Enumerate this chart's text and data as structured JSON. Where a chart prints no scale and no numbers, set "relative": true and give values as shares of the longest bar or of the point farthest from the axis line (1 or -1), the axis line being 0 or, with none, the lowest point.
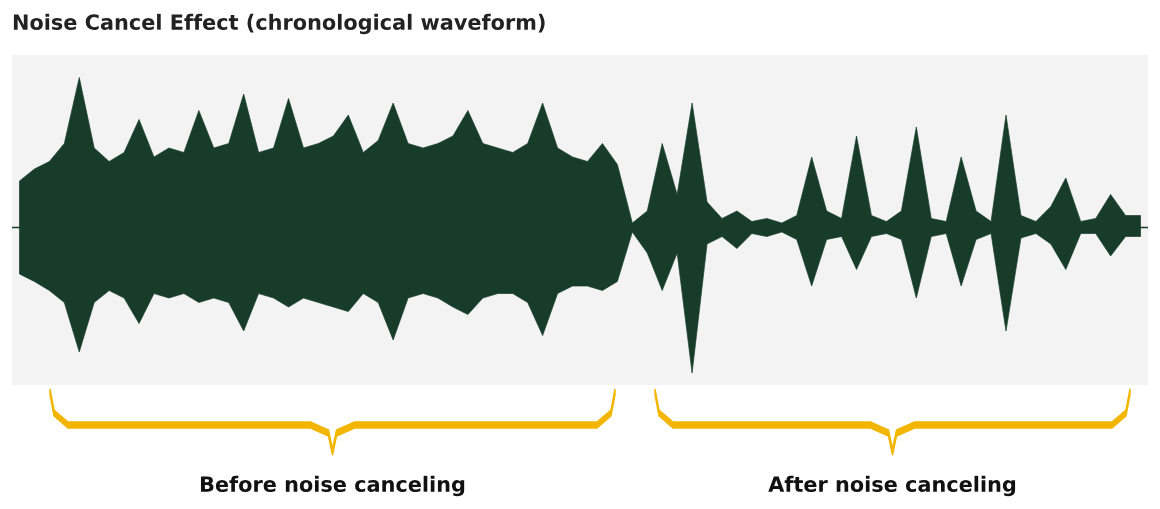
{
  "chart_data": {
    "type": "area",
    "relative": true,
    "title": "Noise Cancel Effect (chronological waveform)",
    "categories": [
      null,
      null,
      null,
      null,
      null,
      null,
      null,
      null,
      null,
      null,
      null,
      null,
      null,
      null,
      null,
      null,
      null,
      null,
      null,
      null,
      null,
      null,
      null,
      null,
      null,
      null,
      null,
      null,
      null,
      null,
      null,
      null,
      null,
      null,
      null,
      null,
      null,
      null,
      null,
      null,
      null,
      null,
      null,
      null,
      null,
      null,
      null,
      null,
      null,
      null,
      null,
      null,
      null,
      null,
      null,
      null,
      null,
      null,
      null,
      null,
      null,
      null,
      null,
      null,
      null,
      null,
      null,
      null,
      null,
      null,
      null,
      null,
      null,
      null,
      null,
      null
    ],
    "series": [
      {
        "color": "#173d2a",
        "values": [
          0.31,
          0.39,
          0.44,
          0.56,
          1,
          0.53,
          0.44,
          0.5,
          0.72,
          0.47,
          0.53,
          0.5,
          0.78,
          0.53,
          0.56,
          0.89,
          0.5,
          0.53,
          0.86,
          0.53,
          0.56,
          0.61,
          0.75,
          0.5,
          0.58,
          0.83,
          0.56,
          0.53,
          0.56,
          0.61,
          0.78,
          0.56,
          0.53,
          0.5,
          0.56,
          0.83,
          0.53,
          0.47,
          0.44,
          0.56,
          0.42,
          0.03,
          0.11,
          0.56,
          0.22,
          0.83,
          0.17,
          0.06,
          0.11,
          0.04,
          0.06,
          0.03,
          0.08,
          0.47,
          0.11,
          0.06,
          0.61,
          0.08,
          0.04,
          0.11,
          0.67,
          0.06,
          0.04,
          0.47,
          0.11,
          0.04,
          0.75,
          0.08,
          0.04,
          0.14,
          0.33,
          0.04,
          0.06,
          0.22,
          0.08,
          0.08
        ]
      },
      {
        "color": "#173d2a",
        "values": [
          -0.31,
          -0.36,
          -0.42,
          -0.5,
          -0.83,
          -0.5,
          -0.42,
          -0.47,
          -0.64,
          -0.44,
          -0.47,
          -0.44,
          -0.5,
          -0.47,
          -0.5,
          -0.69,
          -0.44,
          -0.47,
          -0.53,
          -0.47,
          -0.5,
          -0.53,
          -0.56,
          -0.44,
          -0.5,
          -0.75,
          -0.47,
          -0.44,
          -0.47,
          -0.53,
          -0.58,
          -0.47,
          -0.44,
          -0.44,
          -0.5,
          -0.72,
          -0.44,
          -0.39,
          -0.39,
          -0.42,
          -0.36,
          -0.03,
          -0.17,
          -0.42,
          -0.17,
          -0.97,
          -0.11,
          -0.06,
          -0.14,
          -0.04,
          -0.06,
          -0.03,
          -0.08,
          -0.39,
          -0.08,
          -0.06,
          -0.28,
          -0.06,
          -0.04,
          -0.08,
          -0.47,
          -0.06,
          -0.04,
          -0.39,
          -0.08,
          -0.04,
          -0.69,
          -0.07,
          -0.04,
          -0.11,
          -0.28,
          -0.04,
          -0.04,
          -0.19,
          -0.06,
          -0.06
        ]
      }
    ],
    "annotations": [
      "Before noise canceling",
      "After noise canceling"
    ]
  }
}
